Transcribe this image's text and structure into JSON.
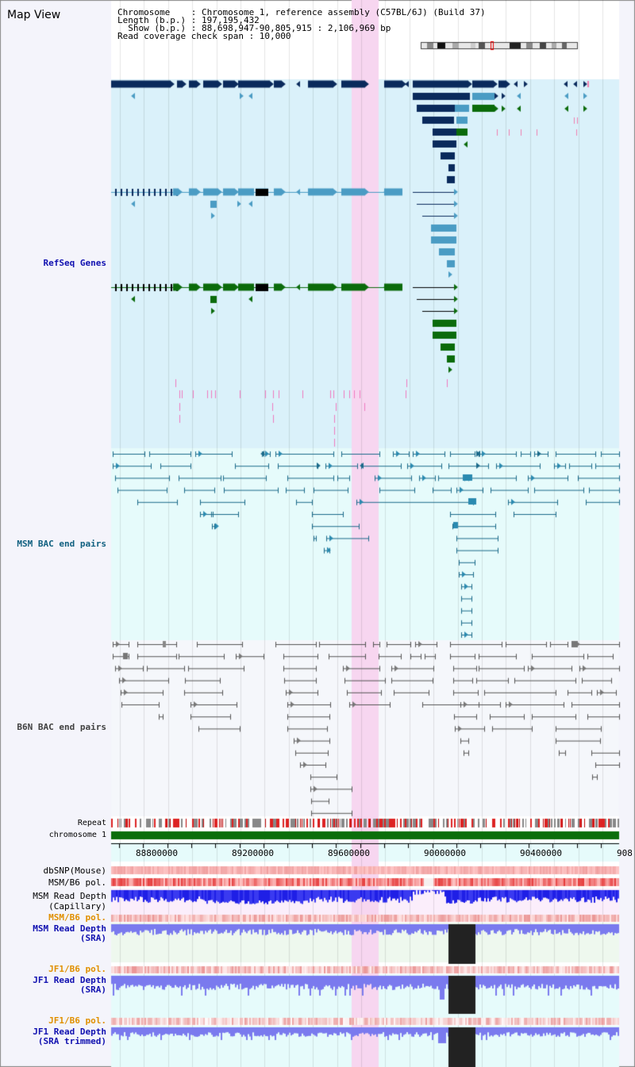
{
  "window": {
    "title": "Map View"
  },
  "info": {
    "line1": "Chromosome    : Chromosome 1, reference assembly (C57BL/6J) (Build 37)",
    "line2": "Length (b.p.) : 197,195,432",
    "line3": "  Show (b.p.) : 88,698,947-90,805,915 : 2,106,969 bp",
    "line4": "Read coverage check span : 10,000"
  },
  "tracks": {
    "refseq": "RefSeq Genes",
    "msm_bac": "MSM BAC end pairs",
    "b6n_bac": "B6N BAC end pairs",
    "repeat": "Repeat",
    "chromosome": "chromosome 1",
    "dbsnp": "dbSNP(Mouse)",
    "msm_b6_pol": "MSM/B6 pol.",
    "msm_depth_cap": "MSM Read Depth\n(Capillary)",
    "msm_b6_pol2": "MSM/B6 pol.",
    "msm_depth_sra": "MSM Read Depth\n(SRA)",
    "jf1_b6_pol": "JF1/B6 pol.",
    "jf1_depth_sra": "JF1 Read Depth\n(SRA)",
    "jf1_b6_pol2": "JF1/B6 pol.",
    "jf1_depth_trim": "JF1 Read Depth\n(SRA trimmed)"
  },
  "axis": {
    "ticks": [
      "88800000",
      "89200000",
      "89600000",
      "90000000",
      "90400000",
      "908"
    ]
  },
  "colors": {
    "refseq_bg": "#daf1fa",
    "msm_bg": "#e6fbfb",
    "b6n_bg": "#f5f7fb",
    "highlight": "#f7d6f0",
    "gene_navy": "#0a2a5c",
    "gene_teal": "#4a9cc4",
    "gene_green": "#0b6b0b",
    "chromosome_green": "#0b6e0b",
    "depth_blue": "#1f1fe6",
    "depth_light": "#7a7aee"
  }
}
